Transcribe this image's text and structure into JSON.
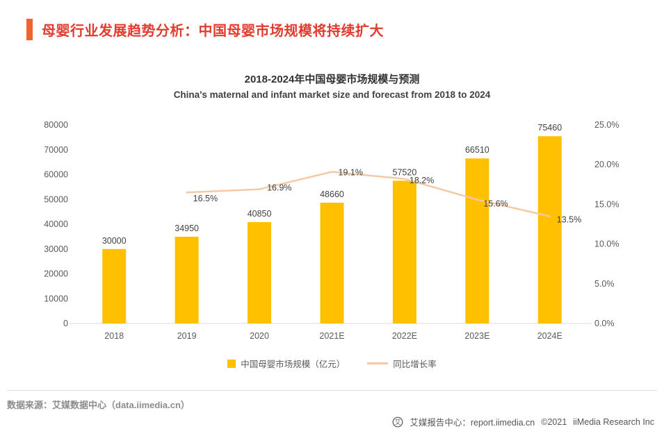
{
  "header": {
    "title": "母婴行业发展趋势分析：中国母婴市场规模将持续扩大",
    "accent_color": "#f0652f",
    "title_color": "#e23b2e"
  },
  "chart_data": {
    "type": "bar+line",
    "title": "2018-2024年中国母婴市场规模与预测",
    "subtitle": "China's maternal and infant market size and forecast from 2018 to 2024",
    "categories": [
      "2018",
      "2019",
      "2020",
      "2021E",
      "2022E",
      "2023E",
      "2024E"
    ],
    "series": [
      {
        "name": "中国母婴市场规模（亿元）",
        "type": "bar",
        "axis": "left",
        "color": "#FFC000",
        "values": [
          30000,
          34950,
          40850,
          48660,
          57520,
          66510,
          75460
        ]
      },
      {
        "name": "同比增长率",
        "type": "line",
        "axis": "right",
        "color": "#F5C9A4",
        "values": [
          null,
          16.5,
          16.9,
          19.1,
          18.2,
          15.6,
          13.5
        ]
      }
    ],
    "left_axis": {
      "min": 0,
      "max": 80000,
      "step": 10000
    },
    "right_axis": {
      "min": 0,
      "max": 25,
      "step": 5,
      "decimals": 1,
      "suffix": "%"
    },
    "grid": false,
    "legend_position": "bottom",
    "line_label_offsets": [
      null,
      [
        9,
        13
      ],
      [
        11,
        2
      ],
      [
        9,
        5
      ],
      [
        7,
        6
      ],
      [
        9,
        10
      ],
      [
        10,
        9
      ]
    ]
  },
  "footer": {
    "source": "数据来源：艾媒数据中心（data.iimedia.cn）",
    "brand": "艾媒报告中心：report.iimedia.cn",
    "copyright": "©2021",
    "company": "iiMedia Research  Inc",
    "logo_glyph": "艾"
  }
}
